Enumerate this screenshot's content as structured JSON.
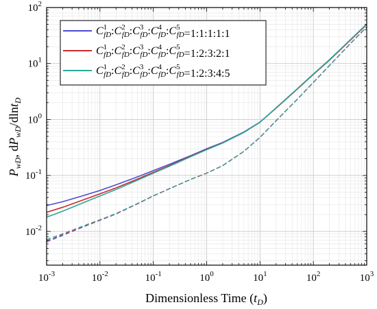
{
  "chart_data": {
    "type": "line",
    "xscale": "log",
    "yscale": "log",
    "xlim": [
      0.001,
      1000
    ],
    "ylim": [
      0.0025,
      100
    ],
    "grid": true,
    "legend_placement": "top-left",
    "xlabel": "Dimensionless Time (t_D)",
    "ylabel": "P_wD, dP_wD/dlnt_D",
    "xlabel_parts": {
      "main": "Dimensionless Time (",
      "var": "t",
      "sub": "D",
      "close": ")"
    },
    "x_ticks": [
      {
        "label_base": "10",
        "label_exp": "-3",
        "value": 0.001
      },
      {
        "label_base": "10",
        "label_exp": "-2",
        "value": 0.01
      },
      {
        "label_base": "10",
        "label_exp": "-1",
        "value": 0.1
      },
      {
        "label_base": "10",
        "label_exp": "0",
        "value": 1
      },
      {
        "label_base": "10",
        "label_exp": "1",
        "value": 10
      },
      {
        "label_base": "10",
        "label_exp": "2",
        "value": 100
      },
      {
        "label_base": "10",
        "label_exp": "3",
        "value": 1000
      }
    ],
    "y_ticks": [
      {
        "label_base": "10",
        "label_exp": "-2",
        "value": 0.01
      },
      {
        "label_base": "10",
        "label_exp": "-1",
        "value": 0.1
      },
      {
        "label_base": "10",
        "label_exp": "0",
        "value": 1
      },
      {
        "label_base": "10",
        "label_exp": "1",
        "value": 10
      },
      {
        "label_base": "10",
        "label_exp": "2",
        "value": 100
      }
    ],
    "series": [
      {
        "name": "C1fD:C2fD:C3fD:C4fD:C5fD=1:1:1:1:1",
        "legend_ratio": "=1:1:1:1:1",
        "color": "#4b4bd2",
        "pressure": {
          "x": [
            0.001,
            0.002,
            0.005,
            0.01,
            0.02,
            0.05,
            0.1,
            0.2,
            0.5,
            1,
            2,
            5,
            10,
            20,
            50,
            100,
            200,
            500,
            1000
          ],
          "y": [
            0.029,
            0.034,
            0.044,
            0.054,
            0.068,
            0.094,
            0.122,
            0.158,
            0.226,
            0.3,
            0.39,
            0.6,
            0.9,
            1.6,
            3.5,
            6.4,
            11.5,
            26.5,
            50
          ]
        },
        "derivative": {
          "x": [
            0.001,
            0.002,
            0.005,
            0.01,
            0.02,
            0.05,
            0.1,
            0.2,
            0.5,
            1,
            2,
            5,
            10,
            20,
            50,
            100,
            200,
            500,
            1000
          ],
          "y": [
            0.0065,
            0.0085,
            0.0122,
            0.0158,
            0.0205,
            0.031,
            0.043,
            0.058,
            0.085,
            0.11,
            0.15,
            0.27,
            0.48,
            0.95,
            2.3,
            4.6,
            9.2,
            23,
            45
          ]
        }
      },
      {
        "name": "C1fD:C2fD:C3fD:C4fD:C5fD=1:2:3:2:1",
        "legend_ratio": "=1:2:3:2:1",
        "color": "#cc2a2a",
        "pressure": {
          "x": [
            0.001,
            0.002,
            0.005,
            0.01,
            0.02,
            0.05,
            0.1,
            0.2,
            0.5,
            1,
            2,
            5,
            10,
            20,
            50,
            100,
            200,
            500,
            1000
          ],
          "y": [
            0.022,
            0.027,
            0.037,
            0.047,
            0.06,
            0.086,
            0.114,
            0.15,
            0.22,
            0.292,
            0.383,
            0.59,
            0.895,
            1.6,
            3.5,
            6.4,
            11.5,
            26.5,
            50
          ]
        },
        "derivative": {
          "x": [
            0.001,
            0.002,
            0.005,
            0.01,
            0.02,
            0.05,
            0.1,
            0.2,
            0.5,
            1,
            2,
            5,
            10,
            20,
            50,
            100,
            200,
            500,
            1000
          ],
          "y": [
            0.0068,
            0.0088,
            0.0124,
            0.016,
            0.0207,
            0.0312,
            0.0432,
            0.058,
            0.085,
            0.11,
            0.15,
            0.27,
            0.48,
            0.95,
            2.3,
            4.6,
            9.2,
            23,
            45
          ]
        }
      },
      {
        "name": "C1fD:C2fD:C3fD:C4fD:C5fD=1:2:3:4:5",
        "legend_ratio": "=1:2:3:4:5",
        "color": "#2aa79b",
        "pressure": {
          "x": [
            0.001,
            0.002,
            0.005,
            0.01,
            0.02,
            0.05,
            0.1,
            0.2,
            0.5,
            1,
            2,
            5,
            10,
            20,
            50,
            100,
            200,
            500,
            1000
          ],
          "y": [
            0.018,
            0.023,
            0.033,
            0.043,
            0.056,
            0.082,
            0.11,
            0.146,
            0.216,
            0.288,
            0.38,
            0.59,
            0.895,
            1.62,
            3.55,
            6.5,
            11.7,
            27,
            51
          ]
        },
        "derivative": {
          "x": [
            0.001,
            0.002,
            0.005,
            0.01,
            0.02,
            0.05,
            0.1,
            0.2,
            0.5,
            1,
            2,
            5,
            10,
            20,
            50,
            100,
            200,
            500,
            1000
          ],
          "y": [
            0.0072,
            0.0091,
            0.0127,
            0.0162,
            0.0209,
            0.0314,
            0.0434,
            0.058,
            0.085,
            0.11,
            0.15,
            0.27,
            0.48,
            0.95,
            2.3,
            4.6,
            9.2,
            23,
            45
          ]
        }
      }
    ]
  }
}
